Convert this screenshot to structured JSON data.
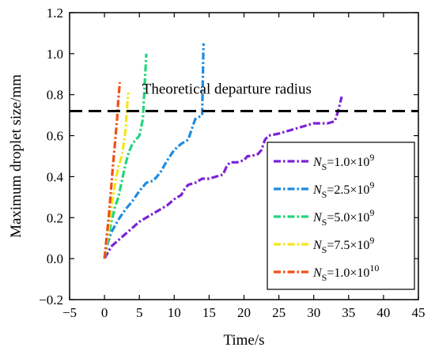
{
  "chart_data": {
    "type": "line",
    "xlabel": "Time/s",
    "ylabel": "Maximum droplet size/mm",
    "xlim": [
      -5,
      45
    ],
    "ylim": [
      -0.2,
      1.2
    ],
    "xticks": [
      -5,
      0,
      5,
      10,
      15,
      20,
      25,
      30,
      35,
      40,
      45
    ],
    "yticks": [
      -0.2,
      0.0,
      0.2,
      0.4,
      0.6,
      0.8,
      1.0,
      1.2
    ],
    "ytick_labels": [
      "−0.2",
      "0.0",
      "0.2",
      "0.4",
      "0.6",
      "0.8",
      "1.0",
      "1.2"
    ],
    "xtick_labels": [
      "−5",
      "0",
      "5",
      "10",
      "15",
      "20",
      "25",
      "30",
      "35",
      "40",
      "45"
    ],
    "grid": false,
    "legend_position": "lower-right",
    "reference_line": {
      "label": "Theoretical departure radius",
      "y": 0.72,
      "style": "dashed",
      "color": "#000000"
    },
    "series": [
      {
        "name": "N_S=1.0×10^9",
        "label_base": "N",
        "label_sub": "S",
        "label_text": "=1.0×10",
        "label_sup": "9",
        "color": "#7b22d6",
        "points": [
          [
            0,
            0.0
          ],
          [
            1,
            0.06
          ],
          [
            2,
            0.09
          ],
          [
            3,
            0.12
          ],
          [
            4,
            0.15
          ],
          [
            5,
            0.18
          ],
          [
            6,
            0.2
          ],
          [
            7,
            0.22
          ],
          [
            8,
            0.24
          ],
          [
            9,
            0.26
          ],
          [
            10,
            0.29
          ],
          [
            11,
            0.31
          ],
          [
            11.5,
            0.34
          ],
          [
            12,
            0.36
          ],
          [
            13,
            0.37
          ],
          [
            14,
            0.39
          ],
          [
            15,
            0.39
          ],
          [
            16,
            0.4
          ],
          [
            17,
            0.41
          ],
          [
            17.5,
            0.45
          ],
          [
            18,
            0.47
          ],
          [
            19,
            0.47
          ],
          [
            20,
            0.48
          ],
          [
            20.5,
            0.5
          ],
          [
            21,
            0.5
          ],
          [
            22,
            0.51
          ],
          [
            22.5,
            0.53
          ],
          [
            23,
            0.58
          ],
          [
            23.5,
            0.6
          ],
          [
            25,
            0.61
          ],
          [
            26,
            0.62
          ],
          [
            28,
            0.64
          ],
          [
            30,
            0.66
          ],
          [
            32,
            0.66
          ],
          [
            33,
            0.67
          ],
          [
            33.5,
            0.72
          ],
          [
            34,
            0.79
          ]
        ]
      },
      {
        "name": "N_S=2.5×10^9",
        "label_base": "N",
        "label_sub": "S",
        "label_text": "=2.5×10",
        "label_sup": "9",
        "color": "#1e8be0",
        "points": [
          [
            0,
            0.0
          ],
          [
            0.5,
            0.08
          ],
          [
            1,
            0.13
          ],
          [
            2,
            0.19
          ],
          [
            3,
            0.24
          ],
          [
            4,
            0.28
          ],
          [
            5,
            0.33
          ],
          [
            6,
            0.37
          ],
          [
            7,
            0.38
          ],
          [
            7.5,
            0.4
          ],
          [
            8,
            0.42
          ],
          [
            9,
            0.48
          ],
          [
            10,
            0.53
          ],
          [
            11,
            0.56
          ],
          [
            12,
            0.58
          ],
          [
            12.5,
            0.63
          ],
          [
            13,
            0.68
          ],
          [
            14,
            0.7
          ],
          [
            14.2,
            1.05
          ]
        ]
      },
      {
        "name": "N_S=5.0×10^9",
        "label_base": "N",
        "label_sub": "S",
        "label_text": "=5.0×10",
        "label_sup": "9",
        "color": "#22d67c",
        "points": [
          [
            0,
            0.0
          ],
          [
            0.5,
            0.1
          ],
          [
            1,
            0.18
          ],
          [
            1.5,
            0.25
          ],
          [
            2,
            0.3
          ],
          [
            2.5,
            0.38
          ],
          [
            3,
            0.46
          ],
          [
            3.5,
            0.52
          ],
          [
            4,
            0.56
          ],
          [
            4.5,
            0.58
          ],
          [
            5,
            0.6
          ],
          [
            5.5,
            0.68
          ],
          [
            6,
            1.0
          ]
        ]
      },
      {
        "name": "N_S=7.5×10^9",
        "label_base": "N",
        "label_sub": "S",
        "label_text": "=7.5×10",
        "label_sup": "9",
        "color": "#f2e61a",
        "points": [
          [
            0,
            0.0
          ],
          [
            0.5,
            0.12
          ],
          [
            1,
            0.25
          ],
          [
            1.5,
            0.36
          ],
          [
            2,
            0.45
          ],
          [
            2.5,
            0.5
          ],
          [
            3,
            0.62
          ],
          [
            3.2,
            0.72
          ],
          [
            3.4,
            0.81
          ]
        ]
      },
      {
        "name": "N_S=1.0×10^10",
        "label_base": "N",
        "label_sub": "S",
        "label_text": "=1.0×10",
        "label_sup": "10",
        "color": "#f05014",
        "points": [
          [
            0,
            0.0
          ],
          [
            0.3,
            0.1
          ],
          [
            0.6,
            0.2
          ],
          [
            0.9,
            0.32
          ],
          [
            1.2,
            0.45
          ],
          [
            1.5,
            0.56
          ],
          [
            1.8,
            0.68
          ],
          [
            2.0,
            0.78
          ],
          [
            2.2,
            0.86
          ]
        ]
      }
    ]
  }
}
